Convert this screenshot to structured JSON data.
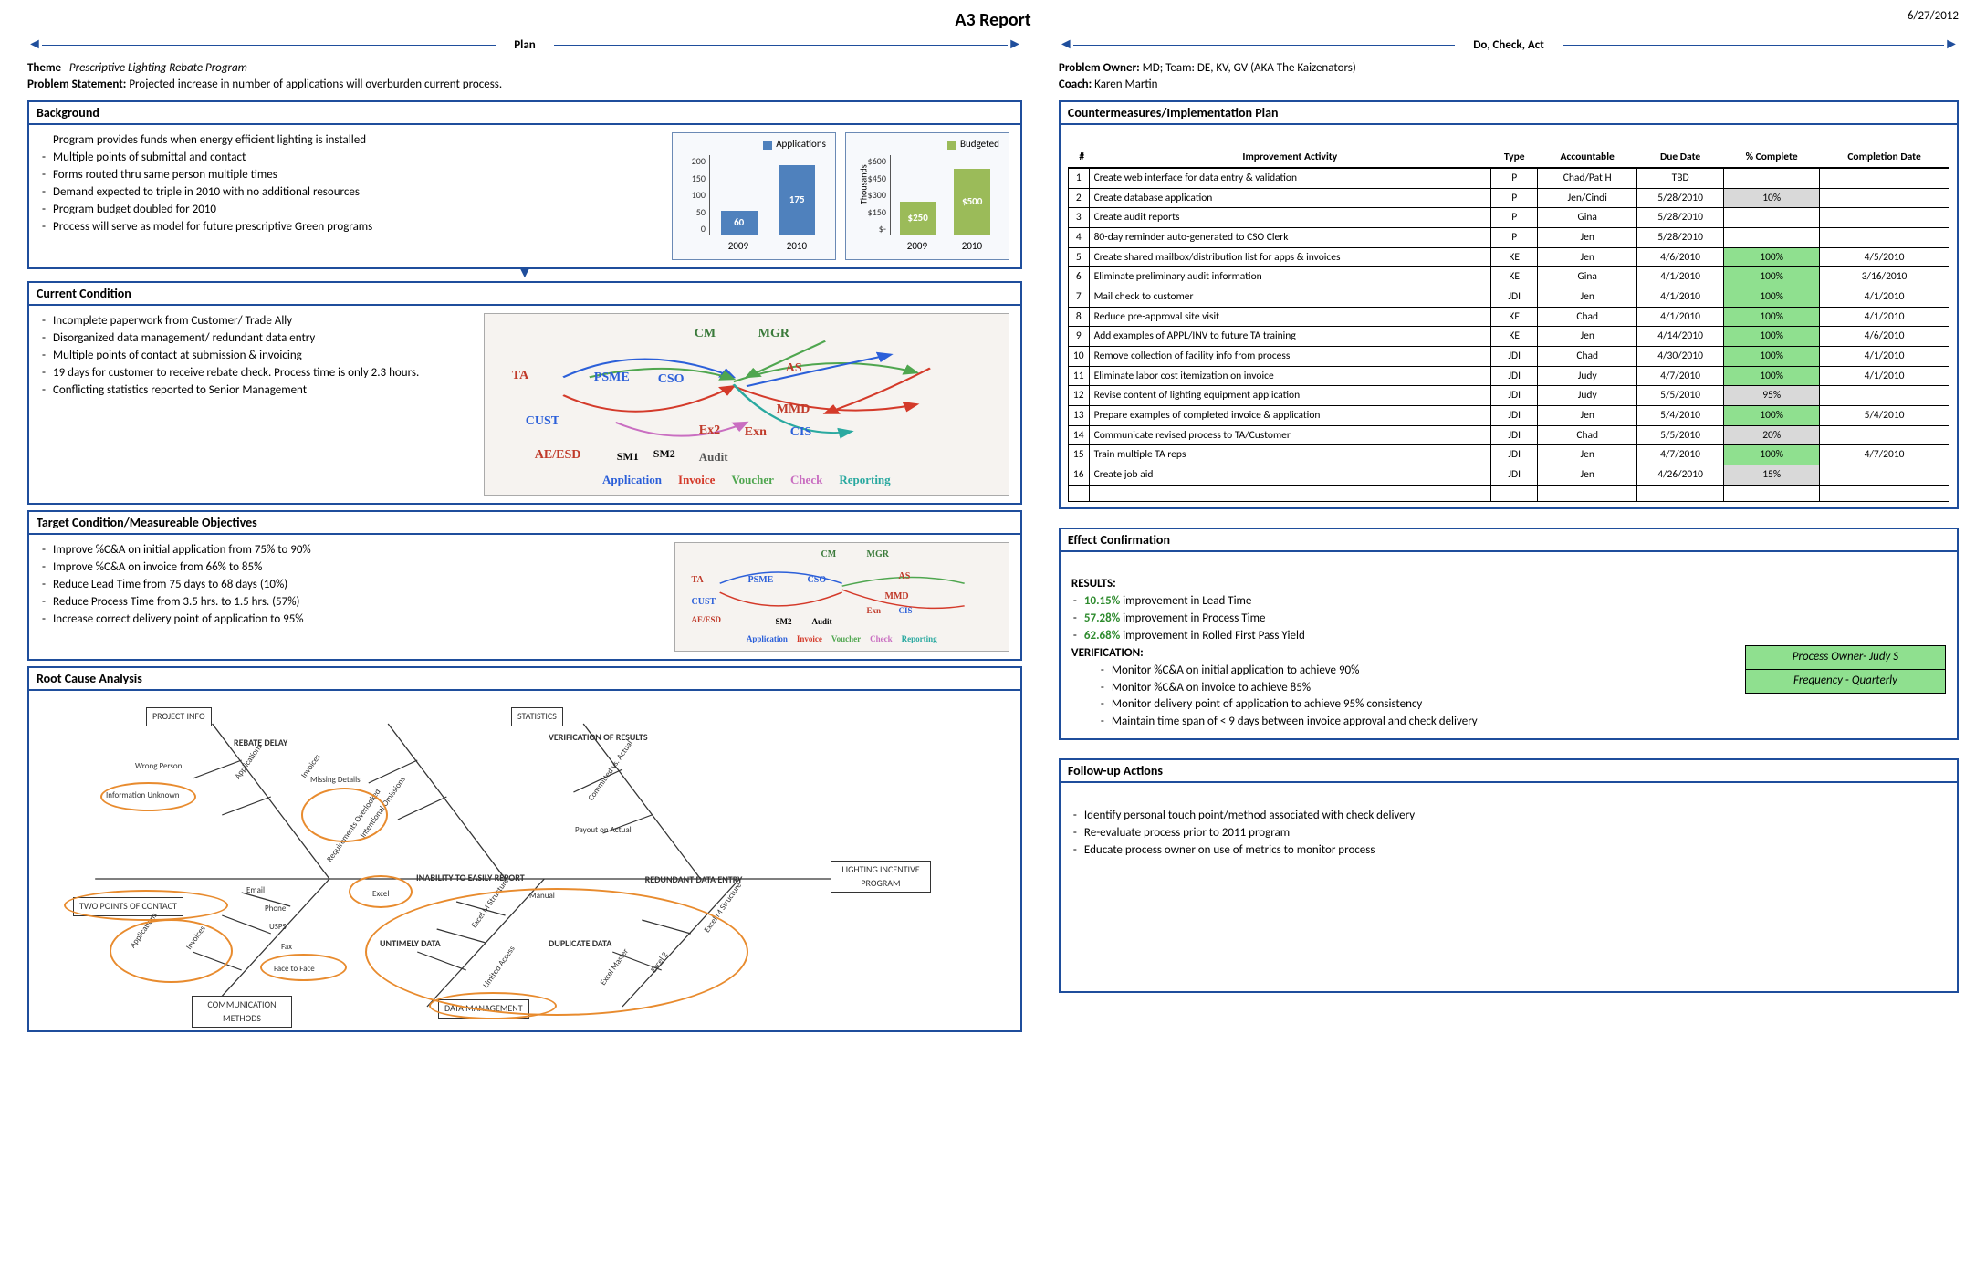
{
  "title": "A3 Report",
  "date": "6/27/2012",
  "phase_left": "Plan",
  "phase_right": "Do, Check, Act",
  "meta_left": {
    "theme_label": "Theme",
    "theme": "Prescriptive Lighting Rebate Program",
    "ps_label": "Problem Statement:",
    "ps": "Projected increase in number of applications will overburden current process."
  },
  "meta_right": {
    "owner_label": "Problem Owner:",
    "owner": "MD; Team: DE, KV, GV (AKA The Kaizenators)",
    "coach_label": "Coach:",
    "coach": "Karen Martin"
  },
  "background": {
    "heading": "Background",
    "intro": "Program provides funds when energy efficient lighting is installed",
    "items": [
      "Multiple points of submittal and contact",
      "Forms routed thru same person multiple times",
      "Demand expected to triple in 2010 with no additional resources",
      "Program budget doubled for 2010",
      "Process will serve as model for future prescriptive Green programs"
    ]
  },
  "chart_apps": {
    "type": "bar",
    "legend": "Applications",
    "legend_color": "#4f81bd",
    "categories": [
      "2009",
      "2010"
    ],
    "values": [
      60,
      175
    ],
    "value_labels": [
      "60",
      "175"
    ],
    "ylim_max": 200,
    "yticks": [
      "200",
      "150",
      "100",
      "50",
      "0"
    ],
    "bar_color": "#4f81bd",
    "bg": "#f7f9fc"
  },
  "chart_budget": {
    "type": "bar",
    "legend": "Budgeted",
    "legend_color": "#9bbb59",
    "ylabel": "Thousands",
    "categories": [
      "2009",
      "2010"
    ],
    "values": [
      250,
      500
    ],
    "value_labels": [
      "$250",
      "$500"
    ],
    "ylim_max": 600,
    "yticks": [
      "$600",
      "$450",
      "$300",
      "$150",
      "$-"
    ],
    "bar_color": "#9bbb59",
    "bg": "#f7f9fc"
  },
  "current": {
    "heading": "Current Condition",
    "items": [
      "Incomplete paperwork from Customer/ Trade Ally",
      "Disorganized data management/ redundant data entry",
      "Multiple points of contact at submission & invoicing",
      "19 days for customer to receive rebate check. Process time is only 2.3 hours.",
      "Conflicting statistics reported to Senior Management"
    ],
    "spaghetti_nodes": {
      "CM": "CM",
      "MGR": "MGR",
      "TA": "TA",
      "PSME": "PSME",
      "CSO": "CSO",
      "AS": "AS",
      "MMD": "MMD",
      "CUST": "CUST",
      "Ex2": "Ex2",
      "Exn": "Exn",
      "CIS": "CIS",
      "AEESD": "AE/ESD",
      "SM1": "SM1",
      "SM2": "SM2",
      "Audit": "Audit"
    },
    "spaghetti_colors": {
      "application": "#2b5fd9",
      "invoice": "#d43a2a",
      "voucher": "#4fa64f",
      "check": "#c96ec1",
      "reporting": "#2aa9a0"
    },
    "spaghetti_legend": [
      "Application",
      "Invoice",
      "Voucher",
      "Check",
      "Reporting"
    ]
  },
  "target": {
    "heading": "Target Condition/Measureable Objectives",
    "items": [
      "Improve %C&A on initial application from 75% to 90%",
      "Improve %C&A on invoice from 66% to 85%",
      "Reduce Lead Time from 75 days to 68 days (10%)",
      "Reduce Process Time from 3.5 hrs. to 1.5 hrs. (57%)",
      "Increase correct delivery point of application to 95%"
    ]
  },
  "rootcause": {
    "heading": "Root Cause Analysis",
    "boxes": {
      "project_info": "PROJECT INFO",
      "statistics": "STATISTICS",
      "rebate_delay": "REBATE DELAY",
      "verify": "VERIFICATION OF RESULTS",
      "two_points": "TWO POINTS OF CONTACT",
      "inability": "INABILITY TO EASILY REPORT",
      "redundant": "REDUNDANT DATA ENTRY",
      "lighting": "LIGHTING INCENTIVE PROGRAM",
      "untimely": "UNTIMELY DATA",
      "duplicate": "DUPLICATE DATA",
      "comm": "COMMUNICATION METHODS",
      "data_mgmt": "DATA MANAGEMENT"
    },
    "small_labels": {
      "wrong": "Wrong Person",
      "info_unknown": "Information Unknown",
      "applications": "Applications",
      "invoices": "Invoices",
      "missing": "Missing Details",
      "intentional": "Intentional Omissions",
      "req_over": "Requirements Overlooked",
      "committed": "Committed vs. Actual",
      "payout": "Payout on Actual",
      "email": "Email",
      "phone": "Phone",
      "usps": "USPS",
      "fax": "Fax",
      "face": "Face to Face",
      "excel": "Excel",
      "excelm": "Excel M Structure",
      "manual": "Manual",
      "limited": "Limited Access",
      "excel_master": "Excel Master",
      "excel2": "Excel 2",
      "excelm2": "Excel M Structure"
    },
    "highlight_color": "#e88b2e"
  },
  "plan": {
    "heading": "Countermeasures/Implementation Plan",
    "columns": [
      "#",
      "Improvement Activity",
      "Type",
      "Accountable",
      "Due Date",
      "% Complete",
      "Completion Date"
    ],
    "rows": [
      {
        "n": "1",
        "act": "Create web interface for data entry & validation",
        "type": "P",
        "acc": "Chad/Pat H",
        "due": "TBD",
        "pct": "",
        "comp": ""
      },
      {
        "n": "2",
        "act": "Create database application",
        "type": "P",
        "acc": "Jen/Cindi",
        "due": "5/28/2010",
        "pct": "10%",
        "comp": ""
      },
      {
        "n": "3",
        "act": "Create audit reports",
        "type": "P",
        "acc": "Gina",
        "due": "5/28/2010",
        "pct": "",
        "comp": ""
      },
      {
        "n": "4",
        "act": "80-day reminder auto-generated to CSO Clerk",
        "type": "P",
        "acc": "Jen",
        "due": "5/28/2010",
        "pct": "",
        "comp": ""
      },
      {
        "n": "5",
        "act": "Create shared mailbox/distribution list for apps & invoices",
        "type": "KE",
        "acc": "Jen",
        "due": "4/6/2010",
        "pct": "100%",
        "comp": "4/5/2010"
      },
      {
        "n": "6",
        "act": "Eliminate preliminary audit information",
        "type": "KE",
        "acc": "Gina",
        "due": "4/1/2010",
        "pct": "100%",
        "comp": "3/16/2010"
      },
      {
        "n": "7",
        "act": "Mail check to customer",
        "type": "JDI",
        "acc": "Jen",
        "due": "4/1/2010",
        "pct": "100%",
        "comp": "4/1/2010"
      },
      {
        "n": "8",
        "act": "Reduce pre-approval site visit",
        "type": "KE",
        "acc": "Chad",
        "due": "4/1/2010",
        "pct": "100%",
        "comp": "4/1/2010"
      },
      {
        "n": "9",
        "act": "Add examples of APPL/INV to future TA training",
        "type": "KE",
        "acc": "Jen",
        "due": "4/14/2010",
        "pct": "100%",
        "comp": "4/6/2010"
      },
      {
        "n": "10",
        "act": "Remove collection of  facility info from process",
        "type": "JDI",
        "acc": "Chad",
        "due": "4/30/2010",
        "pct": "100%",
        "comp": "4/1/2010"
      },
      {
        "n": "11",
        "act": "Eliminate labor cost  itemization on invoice",
        "type": "JDI",
        "acc": "Judy",
        "due": "4/7/2010",
        "pct": "100%",
        "comp": "4/1/2010"
      },
      {
        "n": "12",
        "act": "Revise content of lighting equipment application",
        "type": "JDI",
        "acc": "Judy",
        "due": "5/5/2010",
        "pct": "95%",
        "comp": ""
      },
      {
        "n": "13",
        "act": "Prepare examples of completed invoice & application",
        "type": "JDI",
        "acc": "Jen",
        "due": "5/4/2010",
        "pct": "100%",
        "comp": "5/4/2010"
      },
      {
        "n": "14",
        "act": "Communicate revised process to TA/Customer",
        "type": "JDI",
        "acc": "Chad",
        "due": "5/5/2010",
        "pct": "20%",
        "comp": ""
      },
      {
        "n": "15",
        "act": "Train multiple TA reps",
        "type": "JDI",
        "acc": "Jen",
        "due": "4/7/2010",
        "pct": "100%",
        "comp": "4/7/2010"
      },
      {
        "n": "16",
        "act": "Create job aid",
        "type": "JDI",
        "acc": "Jen",
        "due": "4/26/2010",
        "pct": "15%",
        "comp": ""
      }
    ],
    "pct_colors": {
      "100": "#8fe08f",
      "partial": "#d9d9d9"
    }
  },
  "effect": {
    "heading": "Effect Confirmation",
    "results_label": "RESULTS:",
    "results": [
      {
        "pct": "10.15%",
        "text": "improvement in Lead Time",
        "color": "#2e8b2e"
      },
      {
        "pct": "57.28%",
        "text": "improvement in Process Time",
        "color": "#2e8b2e"
      },
      {
        "pct": "62.68%",
        "text": "improvement in Rolled First Pass Yield",
        "color": "#2e8b2e"
      }
    ],
    "verify_label": "VERIFICATION:",
    "verify": [
      "Monitor %C&A on initial application to achieve 90%",
      "Monitor %C&A on invoice to achieve 85%",
      "Monitor delivery point of application to achieve 95% consistency",
      "Maintain time span of < 9 days between invoice approval and check delivery"
    ],
    "box": {
      "owner": "Process Owner- Judy S",
      "freq": "Frequency - Quarterly",
      "bg": "#8fe08f"
    }
  },
  "followup": {
    "heading": "Follow-up Actions",
    "items": [
      "Identify personal touch point/method associated with check delivery",
      "Re-evaluate process prior to 2011 program",
      "Educate process owner on use of metrics to monitor process"
    ]
  }
}
